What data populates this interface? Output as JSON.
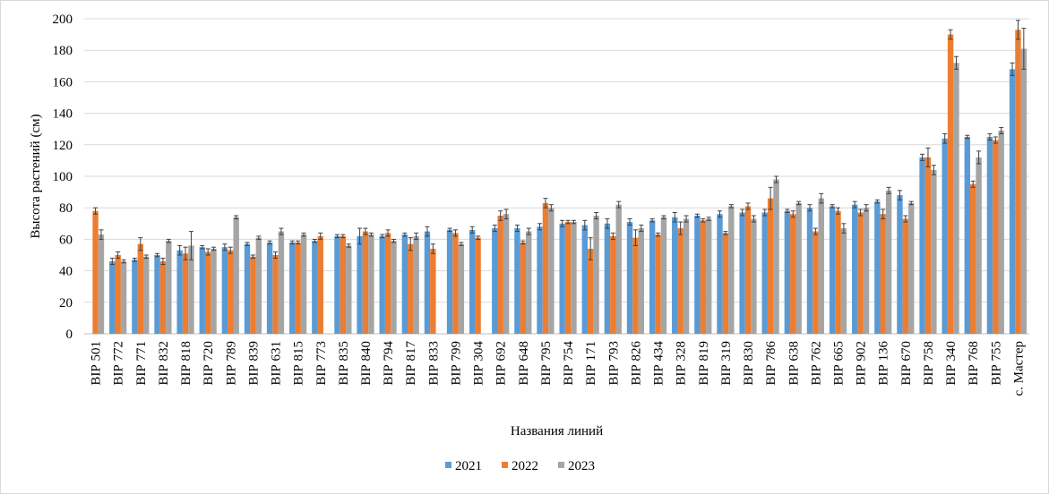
{
  "chart_data": {
    "type": "bar",
    "title": "",
    "xlabel": "Названия линий",
    "ylabel": "Высота растений (см)",
    "ylim": [
      0,
      200
    ],
    "yticks": [
      0,
      20,
      40,
      60,
      80,
      100,
      120,
      140,
      160,
      180,
      200
    ],
    "grid": true,
    "legend_position": "bottom",
    "categories": [
      "ВІР 501",
      "ВІР 772",
      "ВІР 771",
      "ВІР 832",
      "ВІР 818",
      "ВІР 720",
      "ВІР 789",
      "ВІР 839",
      "ВІР 631",
      "ВІР 815",
      "ВІР 773",
      "ВІР 835",
      "ВІР 840",
      "ВІР 794",
      "ВІР 817",
      "ВІР 833",
      "ВІР 799",
      "ВІР 304",
      "ВІР 692",
      "ВІР 648",
      "ВІР 795",
      "ВІР 754",
      "ВІР 171",
      "ВІР 793",
      "ВІР 826",
      "ВІР 434",
      "ВІР 328",
      "ВІР 819",
      "ВІР 319",
      "ВІР 830",
      "ВІР 786",
      "ВІР 638",
      "ВІР 762",
      "ВІР 665",
      "ВІР 902",
      "ВІР 136",
      "ВІР 670",
      "ВІР 758",
      "ВІР 340",
      "ВІР 768",
      "ВІР 755",
      "с. Мастер"
    ],
    "series": [
      {
        "name": "2021",
        "color": "#5b9bd5",
        "values": [
          null,
          46,
          47,
          50,
          53,
          55,
          55,
          57,
          58,
          58,
          59,
          62,
          62,
          62,
          63,
          65,
          66,
          66,
          67,
          67,
          68,
          70,
          69,
          70,
          71,
          72,
          74,
          75,
          76,
          77,
          77,
          78,
          80,
          81,
          82,
          84,
          88,
          112,
          124,
          125,
          125,
          168
        ],
        "errors": [
          0,
          2,
          1,
          1,
          3,
          1,
          2,
          1,
          1,
          1,
          1,
          1,
          5,
          1,
          1,
          3,
          1,
          2,
          2,
          2,
          2,
          2,
          3,
          3,
          2,
          1,
          3,
          1,
          2,
          2,
          2,
          1,
          2,
          1,
          2,
          1,
          3,
          2,
          3,
          1,
          2,
          4
        ]
      },
      {
        "name": "2022",
        "color": "#ed7d31",
        "values": [
          78,
          50,
          57,
          46,
          51,
          52,
          53,
          49,
          50,
          58,
          62,
          62,
          65,
          64,
          57,
          54,
          64,
          61,
          75,
          58,
          83,
          71,
          54,
          62,
          61,
          63,
          67,
          72,
          64,
          81,
          86,
          76,
          65,
          78,
          77,
          76,
          73,
          112,
          190,
          95,
          123,
          193
        ],
        "errors": [
          2,
          2,
          4,
          2,
          4,
          2,
          2,
          1,
          2,
          1,
          2,
          1,
          2,
          2,
          4,
          3,
          2,
          1,
          3,
          1,
          3,
          1,
          7,
          2,
          5,
          1,
          4,
          1,
          1,
          2,
          7,
          2,
          2,
          2,
          2,
          3,
          2,
          6,
          3,
          2,
          2,
          6
        ]
      },
      {
        "name": "2023",
        "color": "#a5a5a5",
        "values": [
          63,
          46,
          49,
          59,
          56,
          54,
          74,
          61,
          65,
          63,
          null,
          56,
          63,
          59,
          62,
          null,
          57,
          null,
          76,
          65,
          80,
          71,
          75,
          82,
          67,
          74,
          73,
          73,
          81,
          73,
          98,
          83,
          86,
          67,
          80,
          91,
          83,
          104,
          172,
          112,
          129,
          181
        ],
        "errors": [
          3,
          1,
          1,
          1,
          9,
          1,
          1,
          1,
          2,
          1,
          0,
          1,
          1,
          1,
          2,
          0,
          1,
          0,
          3,
          2,
          2,
          1,
          2,
          2,
          2,
          1,
          2,
          1,
          1,
          2,
          2,
          1,
          3,
          3,
          2,
          2,
          1,
          3,
          4,
          4,
          2,
          13
        ]
      }
    ]
  }
}
